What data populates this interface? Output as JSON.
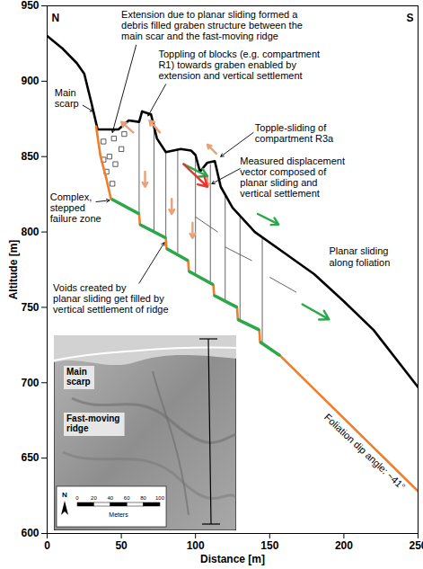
{
  "chart_data": {
    "type": "line",
    "x_label": "Distance [m]",
    "y_label": "Altitude [m]",
    "xlim": [
      0,
      250
    ],
    "xticks": [
      0,
      50,
      100,
      150,
      200,
      250
    ],
    "ylim": [
      600,
      950
    ],
    "yticks": [
      600,
      650,
      700,
      750,
      800,
      850,
      900,
      950
    ],
    "corner_labels": [
      "N",
      "S"
    ],
    "series": [
      {
        "color": "#000000",
        "x": [
          0,
          10,
          20,
          25,
          30,
          34,
          48,
          55,
          62,
          64,
          70,
          74,
          80,
          90,
          97,
          100,
          103,
          108,
          113,
          117,
          125,
          140,
          160,
          180,
          200,
          220,
          250
        ],
        "values": [
          930,
          922,
          912,
          905,
          885,
          868,
          868,
          874,
          873,
          880,
          878,
          862,
          853,
          855,
          854,
          851,
          840,
          846,
          847,
          830,
          816,
          800,
          786,
          772,
          754,
          735,
          697
        ]
      },
      {
        "color": "#f07d2a",
        "x": [
          33,
          36,
          40,
          43,
          62,
          62.5,
          80,
          80.5,
          95,
          95.5,
          112,
          112.5,
          128,
          128.5,
          143,
          143.5,
          157,
          250
        ],
        "values": [
          870,
          850,
          835,
          822,
          812,
          805,
          796,
          789,
          781,
          774,
          765,
          758,
          750,
          742,
          735,
          727,
          718,
          628
        ]
      }
    ],
    "segments": [
      {
        "color": "#2aa84a",
        "points": [
          [
            44,
            821.5
          ],
          [
            61.5,
            812.3
          ]
        ]
      },
      {
        "color": "#2aa84a",
        "points": [
          [
            63,
            804.7
          ],
          [
            79.5,
            796.3
          ]
        ]
      },
      {
        "color": "#2aa84a",
        "points": [
          [
            81,
            788.7
          ],
          [
            94.5,
            781.3
          ]
        ]
      },
      {
        "color": "#2aa84a",
        "points": [
          [
            96,
            773.7
          ],
          [
            111.5,
            765.3
          ]
        ]
      },
      {
        "color": "#2aa84a",
        "points": [
          [
            113,
            757.7
          ],
          [
            127.5,
            750.3
          ]
        ]
      },
      {
        "color": "#2aa84a",
        "points": [
          [
            129,
            741.7
          ],
          [
            142.5,
            735.3
          ]
        ]
      },
      {
        "color": "#2aa84a",
        "points": [
          [
            144,
            726.7
          ],
          [
            156.5,
            718.3
          ]
        ]
      }
    ],
    "fractures": [
      [
        [
          62,
          812
        ],
        [
          62,
          872
        ]
      ],
      [
        [
          72,
          800
        ],
        [
          72,
          868
        ]
      ],
      [
        [
          80,
          796
        ],
        [
          80,
          853
        ]
      ],
      [
        [
          88,
          786
        ],
        [
          88,
          855
        ]
      ],
      [
        [
          100,
          772
        ],
        [
          100,
          851
        ]
      ],
      [
        [
          110,
          767
        ],
        [
          110,
          845
        ]
      ],
      [
        [
          120,
          755
        ],
        [
          120,
          825
        ]
      ],
      [
        [
          130,
          742
        ],
        [
          130,
          811
        ]
      ],
      [
        [
          145,
          727
        ],
        [
          145,
          797
        ]
      ],
      [
        [
          100,
          810
        ],
        [
          115,
          800
        ]
      ],
      [
        [
          120,
          790
        ],
        [
          138,
          781
        ]
      ],
      [
        [
          150,
          770
        ],
        [
          168,
          760
        ]
      ]
    ],
    "debris": [
      [
        38,
        860
      ],
      [
        42,
        850
      ],
      [
        45,
        862
      ],
      [
        40,
        840
      ],
      [
        46,
        845
      ],
      [
        50,
        855
      ],
      [
        44,
        832
      ],
      [
        52,
        865
      ],
      [
        38,
        848
      ]
    ],
    "arrows": [
      {
        "color": "#e8a27a",
        "from": [
          58,
          866
        ],
        "to": [
          50,
          873
        ]
      },
      {
        "color": "#e8a27a",
        "from": [
          76,
          866
        ],
        "to": [
          69,
          874
        ]
      },
      {
        "color": "#e8a27a",
        "from": [
          114,
          852
        ],
        "to": [
          108,
          858
        ]
      },
      {
        "color": "#e8a27a",
        "from": [
          66,
          840
        ],
        "to": [
          66,
          830
        ]
      },
      {
        "color": "#e8a27a",
        "from": [
          84,
          822
        ],
        "to": [
          84,
          812
        ]
      },
      {
        "color": "#e8a27a",
        "from": [
          98,
          806
        ],
        "to": [
          98,
          796
        ]
      },
      {
        "color": "#e8a27a",
        "from": [
          108,
          837
        ],
        "to": [
          108,
          830
        ]
      },
      {
        "color": "#2aa84a",
        "from": [
          92,
          845
        ],
        "to": [
          108,
          837
        ]
      },
      {
        "color": "#2aa84a",
        "from": [
          142,
          812
        ],
        "to": [
          156,
          805
        ]
      },
      {
        "color": "#2aa84a",
        "from": [
          172,
          752
        ],
        "to": [
          190,
          742
        ]
      },
      {
        "color": "#e8332e",
        "from": [
          92,
          845
        ],
        "to": [
          108,
          830
        ]
      }
    ],
    "annotations": [
      {
        "text": "Extension due to planar sliding formed a\ndebris filled graben structure between the\nmain scar and the fast-moving ridge",
        "x": 50,
        "y": 947,
        "pointer": {
          "from": [
            60,
            924
          ],
          "to": [
            44,
            866
          ]
        }
      },
      {
        "text": "Main\nscarp",
        "x": 5,
        "y": 895,
        "pointer": {
          "from": [
            24,
            884
          ],
          "to": [
            31,
            880
          ]
        }
      },
      {
        "text": "Toppling of blocks (e.g. compartment\nR1) towards graben enabled by\nextension and vertical settlement",
        "x": 75,
        "y": 921,
        "pointer": {
          "from": [
            80,
            898
          ],
          "to": [
            68,
            877
          ]
        }
      },
      {
        "text": "Topple-sliding of\ncompartment R3a",
        "x": 140,
        "y": 872,
        "pointer": {
          "from": [
            139,
            866
          ],
          "to": [
            117,
            850
          ]
        }
      },
      {
        "text": "Measured displacement\nvector composed of\nplanar sliding and\nvertical settlement",
        "x": 130,
        "y": 850,
        "pointer": {
          "from": [
            130,
            842
          ],
          "to": [
            111,
            832
          ]
        }
      },
      {
        "text": "Complex,\nstepped\nfailure zone",
        "x": 2,
        "y": 826,
        "pointer": {
          "from": [
            33,
            820
          ],
          "to": [
            42,
            821
          ]
        }
      },
      {
        "text": "Voids created by\nplanar sliding get filled by\nvertical settlement of ridge",
        "x": 4,
        "y": 766,
        "pointer": {
          "from": [
            62,
            766
          ],
          "to": [
            79,
            793
          ]
        }
      },
      {
        "text": "Planar sliding\nalong foliation",
        "x": 190,
        "y": 790
      }
    ],
    "foliation_label": {
      "text": "Foliation dip angle: ~41°",
      "x": 214,
      "y": 654
    },
    "inset": {
      "labels": [
        "Main\nscarp",
        "Fast-moving\nridge"
      ],
      "scale": [
        0,
        20,
        40,
        60,
        80,
        100
      ],
      "unit": "Meters",
      "north": "N"
    }
  }
}
